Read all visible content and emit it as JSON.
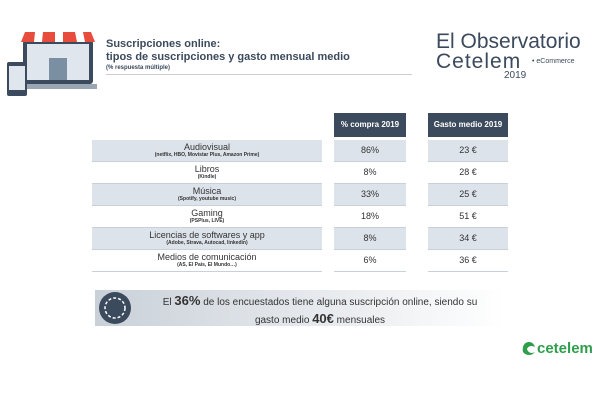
{
  "header": {
    "title": "Suscripciones online:",
    "subtitle": "tipos de suscripciones y gasto mensual medio",
    "note": "(% respuesta múltiple)"
  },
  "brand": {
    "line1": "El Observatorio",
    "line2": "Cetelem",
    "tag": "• eCommerce",
    "year": "2019"
  },
  "table": {
    "headers": [
      "% compra 2019",
      "Gasto medio 2019"
    ],
    "rows": [
      [
        "Audiovisual",
        "(netflix, HBO, Movistar Plus, Amazon Prime)",
        "86%",
        "23 €"
      ],
      [
        "Libros",
        "(Kindle)",
        "8%",
        "28 €"
      ],
      [
        "Música",
        "(Spotify, youtube music)",
        "33%",
        "25 €"
      ],
      [
        "Gaming",
        "(PSPlus, LIVE)",
        "18%",
        "51 €"
      ],
      [
        "Licencias de softwares y app",
        "(Adobe, Strava, Autocad, linkedin)",
        "8%",
        "34 €"
      ],
      [
        "Medios de comunicación",
        "(AS, El País, El Mundo…)",
        "6%",
        "36 €"
      ]
    ]
  },
  "callout": {
    "parts": [
      "El ",
      "36%",
      " de los encuestados tiene alguna suscripción online, siendo su",
      "gasto medio ",
      "40€",
      " mensuales"
    ]
  },
  "logo": "cetelem"
}
